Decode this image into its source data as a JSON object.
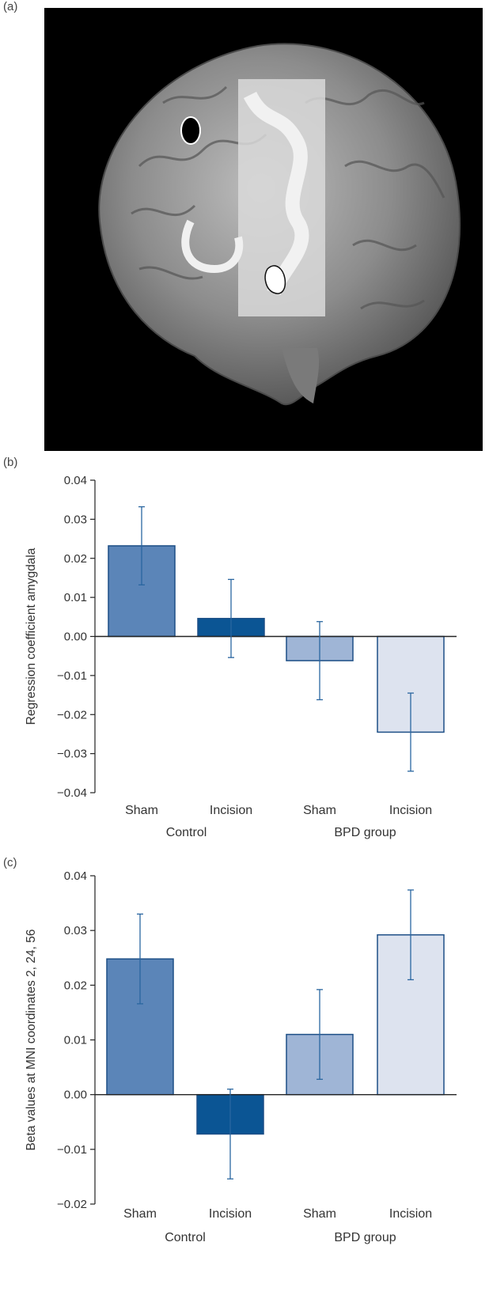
{
  "panels": {
    "a": "(a)",
    "b": "(b)",
    "c": "(c)"
  },
  "colors": {
    "sham_control": "#5b85b8",
    "incision_control": "#0b5594",
    "sham_bpd": "#9fb5d6",
    "incision_bpd": "#dde3ef",
    "bar_outline": "#1d4f86",
    "error_bar": "#2a66a0",
    "brain_background": "#000000"
  },
  "chart_data": [
    {
      "type": "bar",
      "panel": "(b)",
      "ylabel": "Regression coefficient amygdala",
      "ylim": [
        -0.04,
        0.04
      ],
      "yticks": [
        "0.04",
        "0.03",
        "0.02",
        "0.01",
        "0.00",
        "−0.01",
        "−0.02",
        "−0.03",
        "−0.04"
      ],
      "categories": [
        "Sham",
        "Incision",
        "Sham",
        "Incision"
      ],
      "groups": [
        "Control",
        "BPD group"
      ],
      "values": [
        0.0232,
        0.0046,
        -0.0062,
        -0.0245
      ],
      "errors": [
        0.01,
        0.01,
        0.01,
        0.01
      ]
    },
    {
      "type": "bar",
      "panel": "(c)",
      "ylabel": "Beta values at MNI coordinates 2, 24, 56",
      "ylim": [
        -0.02,
        0.04
      ],
      "yticks": [
        "0.04",
        "0.03",
        "0.02",
        "0.01",
        "0.00",
        "−0.01",
        "−0.02"
      ],
      "categories": [
        "Sham",
        "Incision",
        "Sham",
        "Incision"
      ],
      "groups": [
        "Control",
        "BPD group"
      ],
      "values": [
        0.0248,
        -0.0072,
        0.011,
        0.0292
      ],
      "errors": [
        0.0082,
        0.0082,
        0.0082,
        0.0082
      ]
    }
  ]
}
